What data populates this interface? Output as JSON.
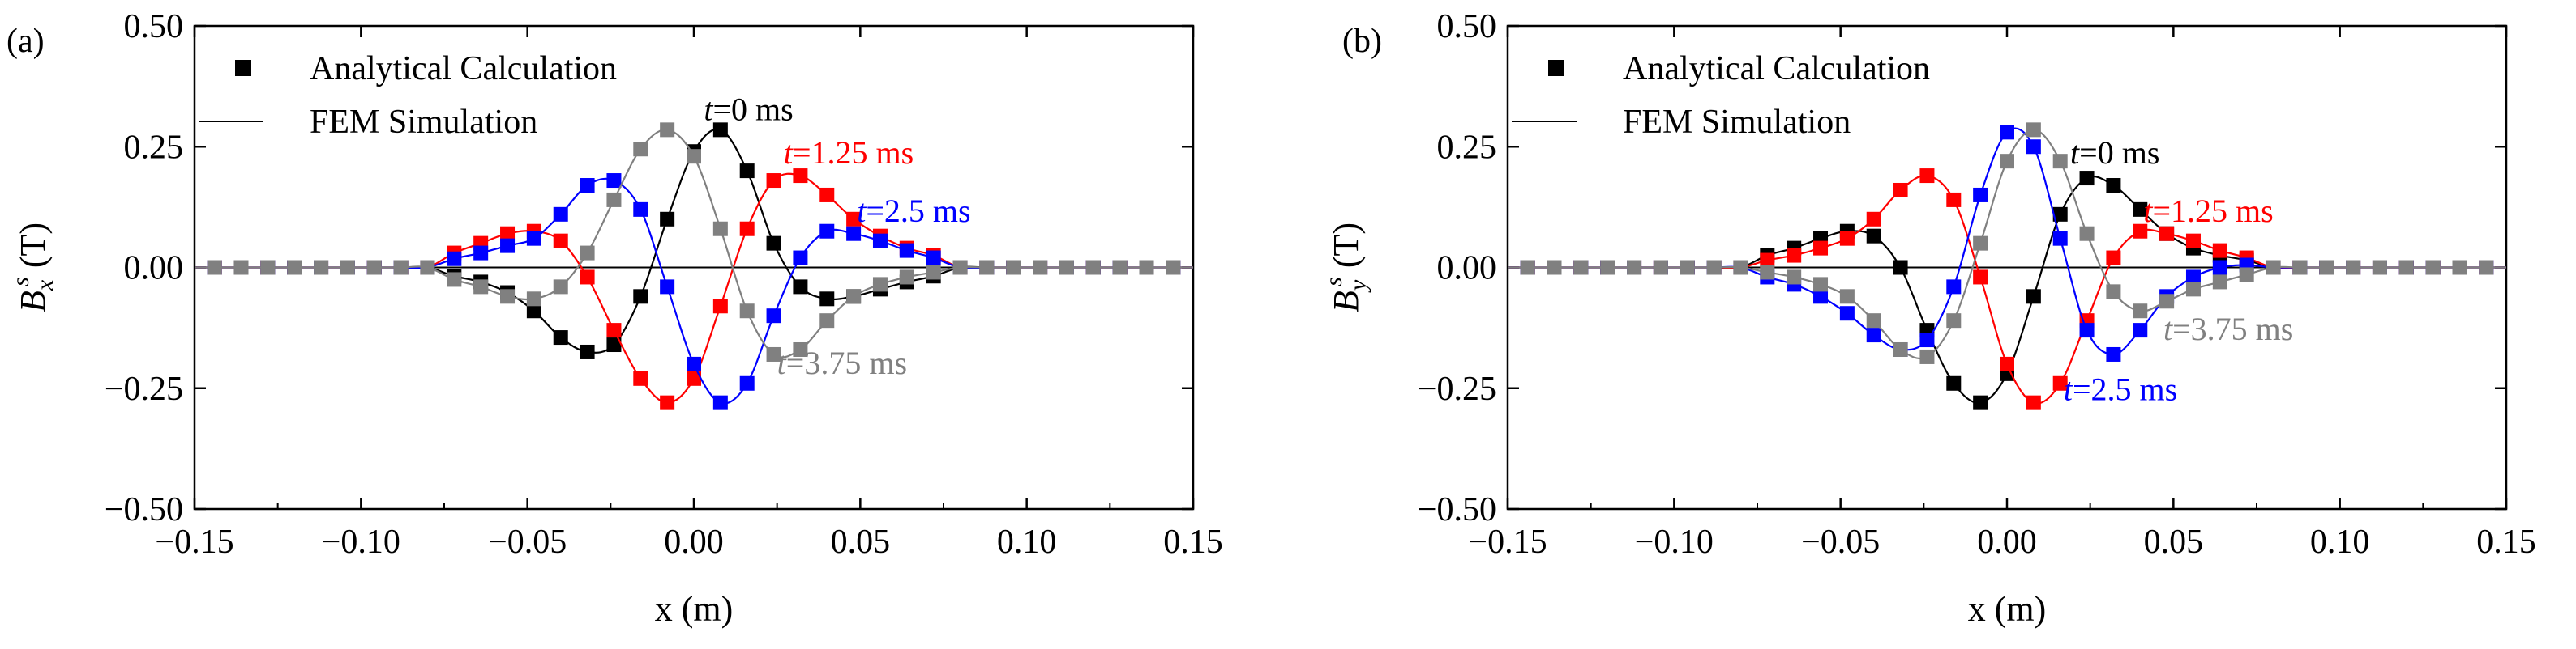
{
  "chart_data": [
    {
      "type": "line",
      "panel_label": "(a)",
      "xlabel": "x (m)",
      "ylabel": "B_x^s (T)",
      "ylabel_var": "x",
      "xlim": [
        -0.15,
        0.15
      ],
      "ylim": [
        -0.5,
        0.5
      ],
      "xticks": [
        -0.15,
        -0.1,
        -0.05,
        0.0,
        0.05,
        0.1,
        0.15
      ],
      "xtick_labels": [
        "−0.15",
        "−0.10",
        "−0.05",
        "0.00",
        "0.05",
        "0.10",
        "0.15"
      ],
      "yticks": [
        -0.5,
        -0.25,
        0,
        0.25,
        0.5
      ],
      "ytick_labels": [
        "−0.50",
        "−0.25",
        "0.00",
        "0.25",
        "0.50"
      ],
      "legend": {
        "placement": "top-left",
        "entries": [
          {
            "marker": "square",
            "label": "Analytical Calculation"
          },
          {
            "marker": "line",
            "label": "FEM Simulation"
          }
        ]
      },
      "series": [
        {
          "name": "t=0 ms",
          "time_prefix": "t",
          "time_rest": "=0 ms",
          "color": "#000000",
          "x": [
            -0.072,
            -0.064,
            -0.056,
            -0.048,
            -0.04,
            -0.032,
            -0.024,
            -0.016,
            -0.008,
            0.0,
            0.008,
            0.016,
            0.024,
            0.032,
            0.04,
            0.048,
            0.056,
            0.064,
            0.072
          ],
          "y": [
            -0.018,
            -0.03,
            -0.052,
            -0.09,
            -0.145,
            -0.175,
            -0.16,
            -0.06,
            0.1,
            0.24,
            0.285,
            0.2,
            0.05,
            -0.04,
            -0.065,
            -0.06,
            -0.045,
            -0.03,
            -0.018
          ]
        },
        {
          "name": "t=1.25 ms",
          "time_prefix": "t",
          "time_rest": "=1.25 ms",
          "color": "#ff0000",
          "x": [
            -0.072,
            -0.064,
            -0.056,
            -0.048,
            -0.04,
            -0.032,
            -0.024,
            -0.016,
            -0.008,
            0.0,
            0.008,
            0.016,
            0.024,
            0.032,
            0.04,
            0.048,
            0.056,
            0.064,
            0.072
          ],
          "y": [
            0.03,
            0.05,
            0.07,
            0.075,
            0.055,
            -0.02,
            -0.13,
            -0.23,
            -0.28,
            -0.23,
            -0.08,
            0.08,
            0.18,
            0.19,
            0.15,
            0.1,
            0.065,
            0.04,
            0.025
          ]
        },
        {
          "name": "t=2.5 ms",
          "time_prefix": "t",
          "time_rest": "=2.5 ms",
          "color": "#0000ff",
          "x": [
            -0.072,
            -0.064,
            -0.056,
            -0.048,
            -0.04,
            -0.032,
            -0.024,
            -0.016,
            -0.008,
            0.0,
            0.008,
            0.016,
            0.024,
            0.032,
            0.04,
            0.048,
            0.056,
            0.064,
            0.072
          ],
          "y": [
            0.018,
            0.03,
            0.045,
            0.06,
            0.11,
            0.17,
            0.18,
            0.12,
            -0.04,
            -0.2,
            -0.28,
            -0.24,
            -0.1,
            0.02,
            0.075,
            0.07,
            0.055,
            0.035,
            0.02
          ]
        },
        {
          "name": "t=3.75 ms",
          "time_prefix": "t",
          "time_rest": "=3.75 ms",
          "color": "#808080",
          "x": [
            -0.072,
            -0.064,
            -0.056,
            -0.048,
            -0.04,
            -0.032,
            -0.024,
            -0.016,
            -0.008,
            0.0,
            0.008,
            0.016,
            0.024,
            0.032,
            0.04,
            0.048,
            0.056,
            0.064,
            0.072
          ],
          "y": [
            -0.025,
            -0.04,
            -0.06,
            -0.065,
            -0.04,
            0.03,
            0.14,
            0.245,
            0.285,
            0.23,
            0.08,
            -0.09,
            -0.18,
            -0.17,
            -0.11,
            -0.06,
            -0.035,
            -0.02,
            -0.01
          ]
        }
      ],
      "annotations": [
        {
          "series": 0,
          "prefix": "t",
          "text": "=0 ms",
          "at": [
            0.003,
            0.305
          ],
          "color": "#000000"
        },
        {
          "series": 1,
          "prefix": "t",
          "text": "=1.25 ms",
          "at": [
            0.027,
            0.215
          ],
          "color": "#ff0000"
        },
        {
          "series": 2,
          "prefix": "t",
          "text": "=2.5 ms",
          "at": [
            0.049,
            0.095
          ],
          "color": "#0000ff"
        },
        {
          "series": 3,
          "prefix": "t",
          "text": "=3.75 ms",
          "at": [
            0.025,
            -0.22
          ],
          "color": "#808080"
        }
      ]
    },
    {
      "type": "line",
      "panel_label": "(b)",
      "xlabel": "x (m)",
      "ylabel": "B_y^s (T)",
      "ylabel_var": "y",
      "xlim": [
        -0.15,
        0.15
      ],
      "ylim": [
        -0.5,
        0.5
      ],
      "xticks": [
        -0.15,
        -0.1,
        -0.05,
        0.0,
        0.05,
        0.1,
        0.15
      ],
      "xtick_labels": [
        "−0.15",
        "−0.10",
        "−0.05",
        "0.00",
        "0.05",
        "0.10",
        "0.15"
      ],
      "yticks": [
        -0.5,
        -0.25,
        0,
        0.25,
        0.5
      ],
      "ytick_labels": [
        "−0.50",
        "−0.25",
        "0.00",
        "0.25",
        "0.50"
      ],
      "legend": {
        "placement": "top-left",
        "entries": [
          {
            "marker": "square",
            "label": "Analytical Calculation"
          },
          {
            "marker": "line",
            "label": "FEM Simulation"
          }
        ]
      },
      "series": [
        {
          "name": "t=0 ms",
          "time_prefix": "t",
          "time_rest": "=0 ms",
          "color": "#000000",
          "x": [
            -0.072,
            -0.064,
            -0.056,
            -0.048,
            -0.04,
            -0.032,
            -0.024,
            -0.016,
            -0.008,
            0.0,
            0.008,
            0.016,
            0.024,
            0.032,
            0.04,
            0.048,
            0.056,
            0.064,
            0.072
          ],
          "y": [
            0.025,
            0.04,
            0.06,
            0.075,
            0.065,
            0.0,
            -0.13,
            -0.24,
            -0.28,
            -0.22,
            -0.06,
            0.11,
            0.185,
            0.17,
            0.12,
            0.07,
            0.04,
            0.025,
            0.015
          ]
        },
        {
          "name": "t=1.25 ms",
          "time_prefix": "t",
          "time_rest": "=1.25 ms",
          "color": "#ff0000",
          "x": [
            -0.072,
            -0.064,
            -0.056,
            -0.048,
            -0.04,
            -0.032,
            -0.024,
            -0.016,
            -0.008,
            0.0,
            0.008,
            0.016,
            0.024,
            0.032,
            0.04,
            0.048,
            0.056,
            0.064,
            0.072
          ],
          "y": [
            0.015,
            0.025,
            0.04,
            0.06,
            0.1,
            0.16,
            0.19,
            0.14,
            -0.02,
            -0.2,
            -0.28,
            -0.24,
            -0.11,
            0.02,
            0.075,
            0.07,
            0.055,
            0.035,
            0.02
          ]
        },
        {
          "name": "t=2.5 ms",
          "time_prefix": "t",
          "time_rest": "=2.5 ms",
          "color": "#0000ff",
          "x": [
            -0.072,
            -0.064,
            -0.056,
            -0.048,
            -0.04,
            -0.032,
            -0.024,
            -0.016,
            -0.008,
            0.0,
            0.008,
            0.016,
            0.024,
            0.032,
            0.04,
            0.048,
            0.056,
            0.064,
            0.072
          ],
          "y": [
            -0.02,
            -0.035,
            -0.06,
            -0.095,
            -0.14,
            -0.17,
            -0.15,
            -0.04,
            0.15,
            0.28,
            0.25,
            0.06,
            -0.13,
            -0.18,
            -0.13,
            -0.06,
            -0.02,
            0.0,
            0.005
          ]
        },
        {
          "name": "t=3.75 ms",
          "time_prefix": "t",
          "time_rest": "=3.75 ms",
          "color": "#808080",
          "x": [
            -0.072,
            -0.064,
            -0.056,
            -0.048,
            -0.04,
            -0.032,
            -0.024,
            -0.016,
            -0.008,
            0.0,
            0.008,
            0.016,
            0.024,
            0.032,
            0.04,
            0.048,
            0.056,
            0.064,
            0.072
          ],
          "y": [
            -0.01,
            -0.02,
            -0.035,
            -0.06,
            -0.11,
            -0.17,
            -0.185,
            -0.11,
            0.05,
            0.22,
            0.285,
            0.22,
            0.07,
            -0.05,
            -0.09,
            -0.07,
            -0.045,
            -0.03,
            -0.015
          ]
        }
      ],
      "annotations": [
        {
          "series": 0,
          "prefix": "t",
          "text": "=0 ms",
          "at": [
            0.019,
            0.215
          ],
          "color": "#000000"
        },
        {
          "series": 1,
          "prefix": "t",
          "text": "=1.25 ms",
          "at": [
            0.041,
            0.095
          ],
          "color": "#ff0000"
        },
        {
          "series": 2,
          "prefix": "t",
          "text": "=2.5 ms",
          "at": [
            0.017,
            -0.275
          ],
          "color": "#0000ff"
        },
        {
          "series": 3,
          "prefix": "t",
          "text": "=3.75 ms",
          "at": [
            0.047,
            -0.15
          ],
          "color": "#808080"
        }
      ]
    }
  ]
}
